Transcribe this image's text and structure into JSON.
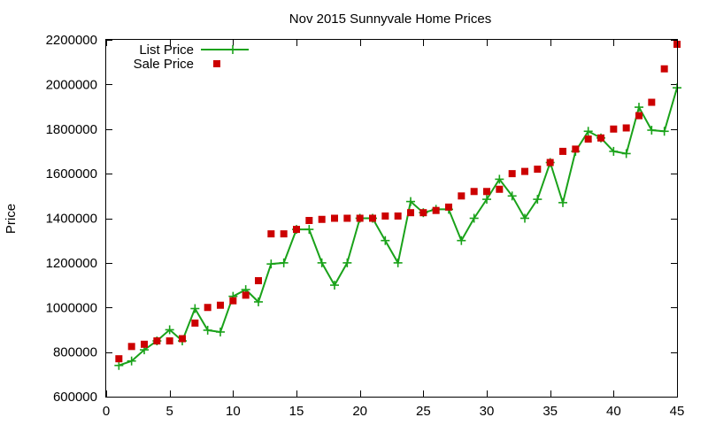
{
  "chart_data": {
    "type": "line",
    "title": "Nov 2015 Sunnyvale Home Prices",
    "xlabel": "",
    "ylabel": "Price",
    "xlim": [
      0,
      45
    ],
    "ylim": [
      600000,
      2200000
    ],
    "x_ticks": [
      "0",
      "5",
      "10",
      "15",
      "20",
      "25",
      "30",
      "35",
      "40",
      "45"
    ],
    "y_ticks": [
      "600000",
      "800000",
      "1000000",
      "1200000",
      "1400000",
      "1600000",
      "1800000",
      "2000000",
      "2200000"
    ],
    "grid": false,
    "legend_position": "top-left",
    "x": [
      1,
      2,
      3,
      4,
      5,
      6,
      7,
      8,
      9,
      10,
      11,
      12,
      13,
      14,
      15,
      16,
      17,
      18,
      19,
      20,
      21,
      22,
      23,
      24,
      25,
      26,
      27,
      28,
      29,
      30,
      31,
      32,
      33,
      34,
      35,
      36,
      37,
      38,
      39,
      40,
      41,
      42,
      43,
      44,
      45
    ],
    "series": [
      {
        "name": "List Price",
        "style": "line-with-plus-markers",
        "color": "#1aa21a",
        "values": [
          740000,
          760000,
          810000,
          850000,
          900000,
          850000,
          995000,
          898000,
          890000,
          1050000,
          1080000,
          1025000,
          1195000,
          1200000,
          1350000,
          1350000,
          1200000,
          1100000,
          1200000,
          1400000,
          1400000,
          1300000,
          1200000,
          1475000,
          1425000,
          1440000,
          1440000,
          1300000,
          1400000,
          1485000,
          1575000,
          1500000,
          1400000,
          1485000,
          1650000,
          1470000,
          1700000,
          1790000,
          1760000,
          1700000,
          1690000,
          1898000,
          1795000,
          1790000,
          1985000
        ]
      },
      {
        "name": "Sale Price",
        "style": "square-markers",
        "color": "#cc0000",
        "values": [
          770000,
          825000,
          835000,
          850000,
          850000,
          860000,
          930000,
          1000000,
          1010000,
          1030000,
          1055000,
          1120000,
          1330000,
          1330000,
          1350000,
          1390000,
          1395000,
          1400000,
          1400000,
          1400000,
          1400000,
          1410000,
          1410000,
          1425000,
          1425000,
          1435000,
          1450000,
          1500000,
          1520000,
          1520000,
          1530000,
          1600000,
          1610000,
          1620000,
          1650000,
          1700000,
          1710000,
          1755000,
          1760000,
          1800000,
          1805000,
          1860000,
          1920000,
          2070000,
          2180000
        ]
      }
    ]
  }
}
